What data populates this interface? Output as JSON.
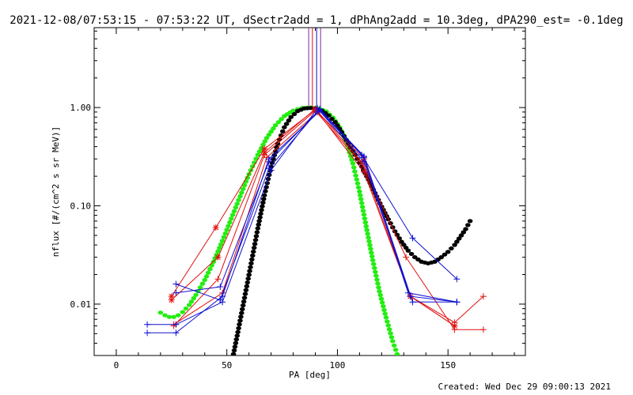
{
  "page": {
    "title": "2021-12-08/07:53:15 - 07:53:22 UT, dSectr2add = 1, dPhAng2add = 10.3deg, dPA290_est= -0.1deg",
    "created": "Created: Wed Dec 29 09:00:13 2021"
  },
  "chart_data": {
    "type": "line",
    "title": "2021-12-08/07:53:15 - 07:53:22 UT, dSectr2add = 1, dPhAng2add = 10.3deg, dPA290_est= -0.1deg",
    "xlabel": "PA [deg]",
    "ylabel": "nflux [#/(cm^2 s sr MeV)]",
    "xlim": [
      -10,
      185
    ],
    "ylim": [
      0.003,
      6.5
    ],
    "yscale": "log",
    "xticks": [
      0,
      50,
      100,
      150
    ],
    "xtick_labels": [
      "0",
      "50",
      "100",
      "150"
    ],
    "yticks": [
      0.01,
      0.1,
      1
    ],
    "ytick_labels": [
      "0.01",
      "0.10",
      "1.00"
    ],
    "grid": false,
    "colors": {
      "red": "#e01010",
      "blue": "#1010d0",
      "green": "#22ee11",
      "black": "#000000",
      "purple": "#7a2a9a"
    },
    "vertical_markers": [
      {
        "x": 87,
        "color": "#7a2a9a"
      },
      {
        "x": 88.7,
        "color": "#e01010"
      },
      {
        "x": 90.6,
        "color": "#1010d0"
      },
      {
        "x": 92.4,
        "color": "#7a2a9a"
      }
    ],
    "series": [
      {
        "color": "#e01010",
        "marker": "star",
        "x": [
          25,
          45,
          67,
          90,
          112,
          133,
          153
        ],
        "y": [
          0.012,
          0.06,
          0.38,
          0.95,
          0.3,
          0.012,
          0.006
        ]
      },
      {
        "color": "#e01010",
        "marker": "star",
        "x": [
          25,
          46,
          67,
          90,
          111,
          133,
          153
        ],
        "y": [
          0.011,
          0.03,
          0.35,
          0.97,
          0.28,
          0.012,
          0.006
        ]
      },
      {
        "color": "#e01010",
        "marker": "plus",
        "x": [
          26,
          46,
          67,
          90,
          112,
          131,
          153,
          166
        ],
        "y": [
          0.006,
          0.018,
          0.33,
          0.93,
          0.25,
          0.03,
          0.0055,
          0.0055
        ]
      },
      {
        "color": "#e01010",
        "marker": "plus",
        "x": [
          26,
          48,
          68,
          91,
          112,
          133,
          153,
          166
        ],
        "y": [
          0.0062,
          0.013,
          0.31,
          0.9,
          0.22,
          0.012,
          0.0065,
          0.012
        ]
      },
      {
        "color": "#1010d0",
        "marker": "plus",
        "x": [
          27,
          47,
          69,
          92,
          111,
          134,
          154
        ],
        "y": [
          0.016,
          0.011,
          0.24,
          0.97,
          0.33,
          0.047,
          0.018
        ]
      },
      {
        "color": "#1010d0",
        "marker": "plus",
        "x": [
          27,
          47,
          69,
          92,
          112,
          134,
          154
        ],
        "y": [
          0.013,
          0.015,
          0.28,
          0.95,
          0.32,
          0.0105,
          0.0105
        ]
      },
      {
        "color": "#1010d0",
        "marker": "plus",
        "x": [
          14,
          27,
          48,
          70,
          91,
          112,
          132,
          154
        ],
        "y": [
          0.0062,
          0.0062,
          0.0105,
          0.23,
          0.98,
          0.31,
          0.013,
          0.0105
        ]
      },
      {
        "color": "#1010d0",
        "marker": "plus",
        "x": [
          14,
          27,
          48,
          69,
          92,
          112,
          133,
          154
        ],
        "y": [
          0.0051,
          0.0051,
          0.012,
          0.3,
          0.92,
          0.28,
          0.012,
          0.0105
        ]
      }
    ],
    "fit_curves": [
      {
        "color": "#22ee11",
        "style": "dots",
        "x": [
          20,
          22,
          24,
          26,
          28,
          30,
          33,
          36,
          40,
          44,
          48,
          52,
          56,
          60,
          64,
          68,
          72,
          76,
          80,
          84,
          88,
          90,
          92,
          95,
          98,
          101,
          104,
          107,
          110,
          113,
          116,
          119,
          122,
          125,
          127
        ],
        "y": [
          0.0082,
          0.0077,
          0.0074,
          0.0074,
          0.0077,
          0.0083,
          0.0098,
          0.0124,
          0.0176,
          0.027,
          0.044,
          0.074,
          0.125,
          0.21,
          0.33,
          0.49,
          0.66,
          0.82,
          0.93,
          0.99,
          1.0,
          0.99,
          0.97,
          0.91,
          0.79,
          0.63,
          0.45,
          0.27,
          0.14,
          0.062,
          0.028,
          0.0135,
          0.0073,
          0.0042,
          0.0031
        ]
      },
      {
        "color": "#000000",
        "style": "dots",
        "x": [
          53,
          55,
          58,
          61,
          64,
          67,
          70,
          73,
          76,
          79,
          82,
          85,
          88,
          90,
          93,
          96,
          99,
          102,
          105,
          108,
          111,
          114,
          117,
          120,
          123,
          126,
          129,
          132,
          135,
          138,
          141,
          144,
          147,
          150,
          153,
          156,
          158,
          160
        ],
        "y": [
          0.0031,
          0.0052,
          0.0116,
          0.026,
          0.059,
          0.128,
          0.25,
          0.43,
          0.63,
          0.8,
          0.92,
          0.98,
          0.99,
          0.98,
          0.93,
          0.83,
          0.71,
          0.56,
          0.43,
          0.33,
          0.25,
          0.185,
          0.135,
          0.098,
          0.073,
          0.055,
          0.043,
          0.035,
          0.03,
          0.027,
          0.026,
          0.027,
          0.03,
          0.034,
          0.04,
          0.05,
          0.058,
          0.07
        ]
      }
    ]
  }
}
